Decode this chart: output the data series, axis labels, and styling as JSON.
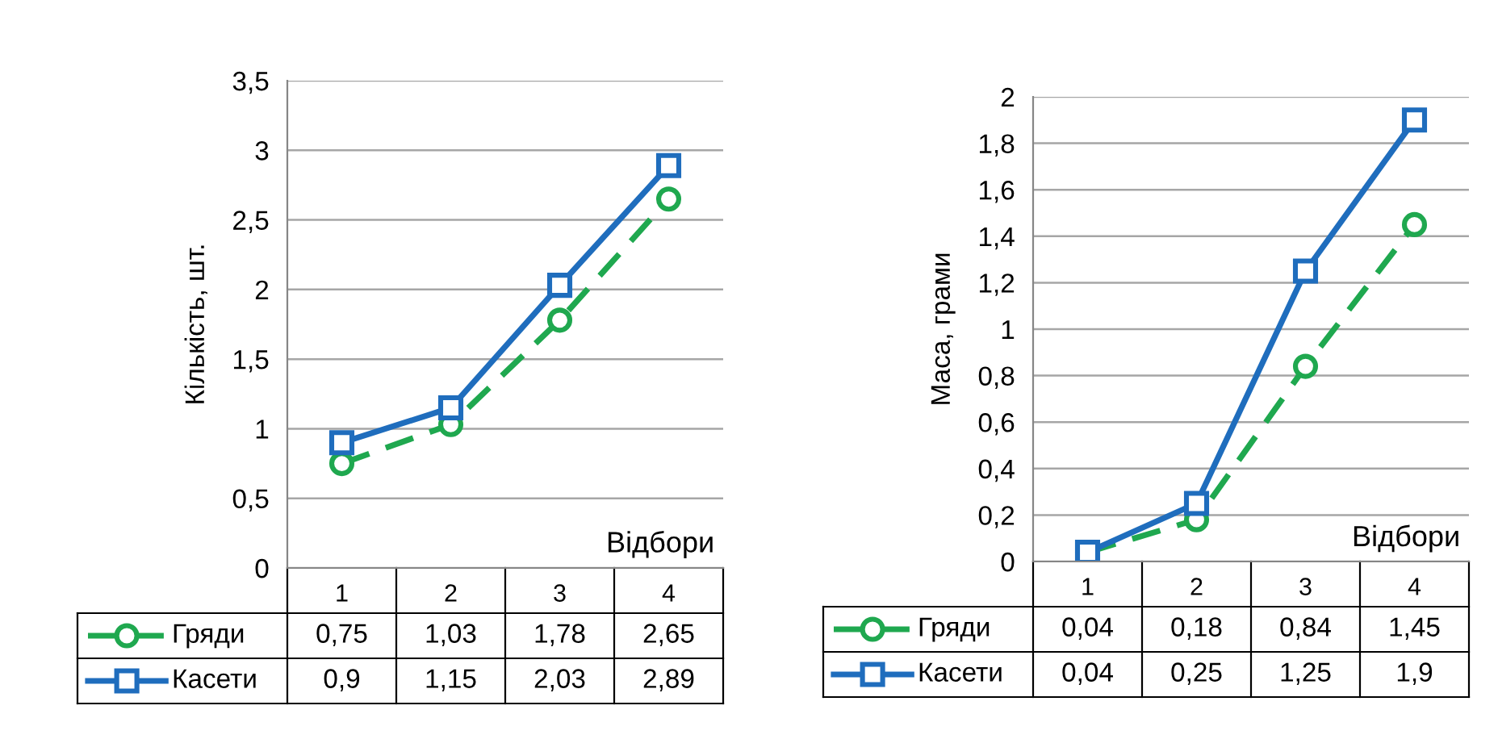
{
  "chart_data": [
    {
      "type": "line",
      "ylabel": "Кількість, шт.",
      "xlabel": "Відбори",
      "categories": [
        "1",
        "2",
        "3",
        "4"
      ],
      "ylim": [
        0,
        3.5
      ],
      "yticks": [
        0,
        {
          "value": 0.5,
          "label": "0,5"
        },
        1,
        {
          "value": 1.5,
          "label": "1,5"
        },
        2,
        {
          "value": 2.5,
          "label": "2,5"
        },
        3,
        {
          "value": 3.5,
          "label": "3,5"
        }
      ],
      "grid": "y",
      "legend": "bottom",
      "series": [
        {
          "name": "Гряди",
          "color": "#1fa84f",
          "values": [
            0.75,
            1.03,
            1.78,
            2.65
          ],
          "marker": "circle",
          "line_style": "dashed",
          "value_labels": [
            "0,75",
            "1,03",
            "1,78",
            "2,65"
          ]
        },
        {
          "name": "Касети",
          "color": "#1f6dbd",
          "values": [
            0.9,
            1.15,
            2.03,
            2.89
          ],
          "marker": "square",
          "line_style": "solid",
          "value_labels": [
            "0,9",
            "1,15",
            "2,03",
            "2,89"
          ]
        }
      ]
    },
    {
      "type": "line",
      "ylabel": "Маса, грами",
      "xlabel": "Відбори",
      "categories": [
        "1",
        "2",
        "3",
        "4"
      ],
      "ylim": [
        0,
        2
      ],
      "yticks": [
        0,
        {
          "value": 0.2,
          "label": "0,2"
        },
        {
          "value": 0.4,
          "label": "0,4"
        },
        {
          "value": 0.6,
          "label": "0,6"
        },
        {
          "value": 0.8,
          "label": "0,8"
        },
        1,
        {
          "value": 1.2,
          "label": "1,2"
        },
        {
          "value": 1.4,
          "label": "1,4"
        },
        {
          "value": 1.6,
          "label": "1,6"
        },
        {
          "value": 1.8,
          "label": "1,8"
        },
        2
      ],
      "grid": "y",
      "legend": "bottom",
      "series": [
        {
          "name": "Гряди",
          "color": "#1fa84f",
          "values": [
            0.04,
            0.18,
            0.84,
            1.45
          ],
          "marker": "circle",
          "line_style": "dashed",
          "value_labels": [
            "0,04",
            "0,18",
            "0,84",
            "1,45"
          ]
        },
        {
          "name": "Касети",
          "color": "#1f6dbd",
          "values": [
            0.04,
            0.25,
            1.25,
            1.9
          ],
          "marker": "square",
          "line_style": "solid",
          "value_labels": [
            "0,04",
            "0,25",
            "1,25",
            "1,9"
          ]
        }
      ]
    }
  ]
}
